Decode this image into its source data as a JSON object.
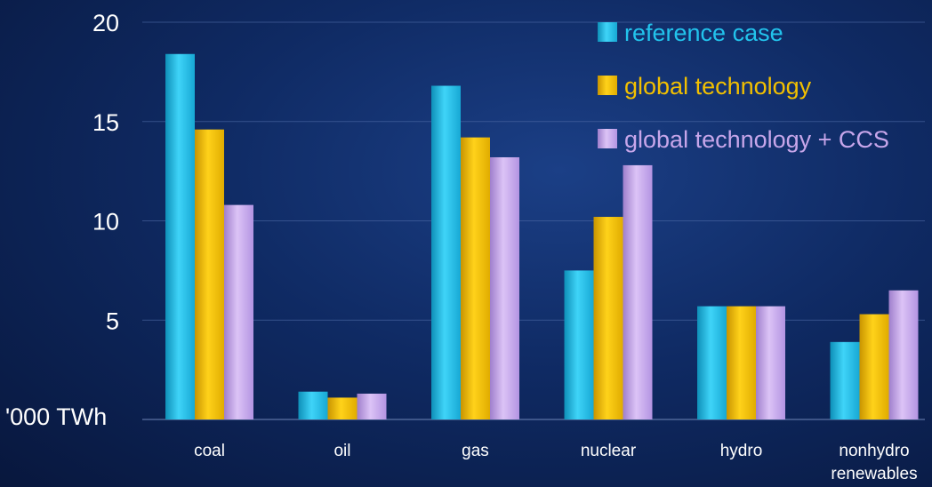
{
  "chart_data": {
    "type": "bar",
    "categories": [
      "coal",
      "oil",
      "gas",
      "nuclear",
      "hydro",
      "nonhydro renewables"
    ],
    "category_lines": [
      [
        "coal"
      ],
      [
        "oil"
      ],
      [
        "gas"
      ],
      [
        "nuclear"
      ],
      [
        "hydro"
      ],
      [
        "nonhydro",
        "renewables"
      ]
    ],
    "series": [
      {
        "name": "reference case",
        "color": "#22c3ec",
        "values": [
          18.4,
          1.4,
          16.8,
          7.5,
          5.7,
          3.9
        ]
      },
      {
        "name": "global technology",
        "color": "#f2c000",
        "values": [
          14.6,
          1.1,
          14.2,
          10.2,
          5.7,
          5.3
        ]
      },
      {
        "name": "global technology + CCS",
        "color": "#c7a6ea",
        "values": [
          10.8,
          1.3,
          13.2,
          12.8,
          5.7,
          6.5
        ]
      }
    ],
    "yticks": [
      5,
      10,
      15,
      20
    ],
    "ylabel": "'000 TWh",
    "ylim": [
      0,
      20
    ],
    "grid": true,
    "legend_position": "top-right"
  }
}
